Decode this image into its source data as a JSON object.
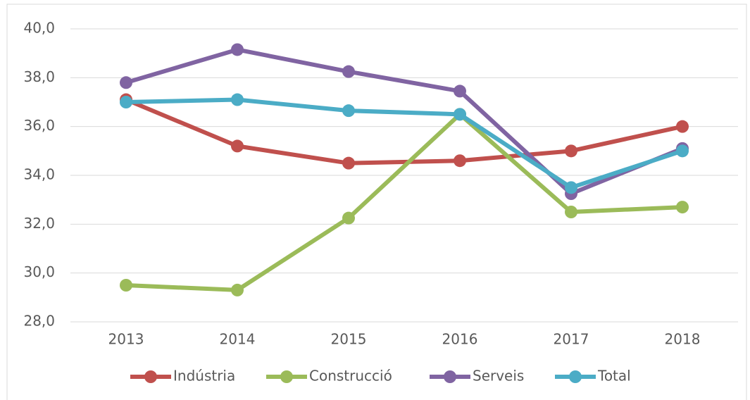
{
  "chart_data": {
    "type": "line",
    "categories": [
      "2013",
      "2014",
      "2015",
      "2016",
      "2017",
      "2018"
    ],
    "series": [
      {
        "name": "Indústria",
        "color": "#c0504d",
        "values": [
          37.1,
          35.2,
          34.5,
          34.6,
          35.0,
          36.0
        ]
      },
      {
        "name": "Construcció",
        "color": "#9bbb59",
        "values": [
          29.5,
          29.3,
          32.25,
          36.5,
          32.5,
          32.7
        ]
      },
      {
        "name": "Serveis",
        "color": "#8064a2",
        "values": [
          37.8,
          39.15,
          38.25,
          37.45,
          33.25,
          35.1
        ]
      },
      {
        "name": "Total",
        "color": "#4bacc6",
        "values": [
          37.0,
          37.1,
          36.65,
          36.5,
          33.5,
          35.0
        ]
      }
    ],
    "ylim": [
      28,
      40
    ],
    "yticks": [
      {
        "value": 28,
        "label": "28,0"
      },
      {
        "value": 30,
        "label": "30,0"
      },
      {
        "value": 32,
        "label": "32,0"
      },
      {
        "value": 34,
        "label": "34,0"
      },
      {
        "value": 36,
        "label": "36,0"
      },
      {
        "value": 38,
        "label": "38,0"
      },
      {
        "value": 40,
        "label": "40,0"
      }
    ],
    "grid": true,
    "legend": "bottom"
  }
}
